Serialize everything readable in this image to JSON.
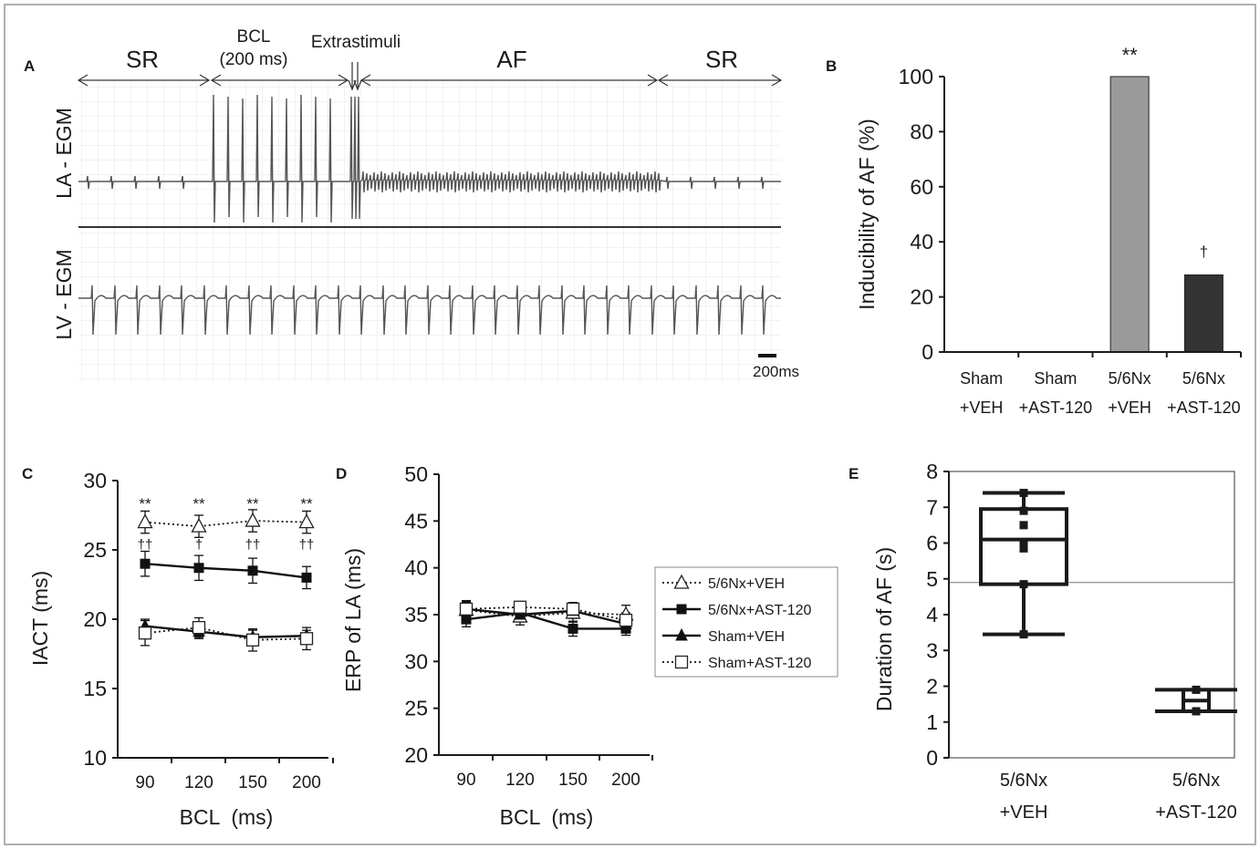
{
  "chart_data": [
    {
      "panel": "A",
      "type": "line",
      "traces": [
        "LA - EGM",
        "LV - EGM"
      ],
      "phases": [
        {
          "label": "SR"
        },
        {
          "label": "BCL (200 ms)",
          "label_lines": [
            "BCL",
            "(200 ms)"
          ]
        },
        {
          "label": "Extrastimuli"
        },
        {
          "label": "AF"
        },
        {
          "label": "SR"
        }
      ],
      "scale_bar": "200ms"
    },
    {
      "panel": "B",
      "type": "bar",
      "categories": [
        "Sham +VEH",
        "Sham +AST-120",
        "5/6Nx +VEH",
        "5/6Nx +AST-120"
      ],
      "category_lines": [
        [
          "Sham",
          "+VEH"
        ],
        [
          "Sham",
          "+AST-120"
        ],
        [
          "5/6Nx",
          "+VEH"
        ],
        [
          "5/6Nx",
          "+AST-120"
        ]
      ],
      "values": [
        0,
        0,
        100,
        28
      ],
      "annotations": [
        "",
        "",
        "**",
        "†"
      ],
      "colors": [
        "#9a9a9a",
        "#9a9a9a",
        "#9a9a9a",
        "#333333"
      ],
      "ylabel": "Inducibility of AF (%)",
      "ylim": [
        0,
        100
      ],
      "yticks": [
        0,
        20,
        40,
        60,
        80,
        100
      ]
    },
    {
      "panel": "C",
      "type": "line",
      "x": [
        90,
        120,
        150,
        200
      ],
      "xlabel": "BCL  (ms)",
      "ylabel": "IACT (ms)",
      "ylim": [
        10,
        30
      ],
      "yticks": [
        10,
        15,
        20,
        25,
        30
      ],
      "series": [
        {
          "name": "5/6Nx+VEH",
          "values": [
            27.0,
            26.7,
            27.1,
            27.0
          ],
          "err": [
            0.8,
            0.8,
            0.8,
            0.8
          ],
          "marker": "open-triangle",
          "style": "dotted"
        },
        {
          "name": "5/6Nx+AST-120",
          "values": [
            24.0,
            23.7,
            23.5,
            23.0
          ],
          "err": [
            0.9,
            0.9,
            0.9,
            0.8
          ],
          "marker": "filled-square",
          "style": "solid"
        },
        {
          "name": "Sham+VEH",
          "values": [
            19.5,
            19.1,
            18.7,
            18.8
          ],
          "err": [
            0.5,
            0.5,
            0.5,
            0.4
          ],
          "marker": "filled-triangle",
          "style": "solid"
        },
        {
          "name": "Sham+AST-120",
          "values": [
            19.0,
            19.4,
            18.5,
            18.6
          ],
          "err": [
            0.9,
            0.7,
            0.8,
            0.8
          ],
          "marker": "open-square",
          "style": "dotted"
        }
      ],
      "annotations": [
        {
          "x": 90,
          "row1": "**",
          "row2": "††"
        },
        {
          "x": 120,
          "row1": "**",
          "row2": "†"
        },
        {
          "x": 150,
          "row1": "**",
          "row2": "††"
        },
        {
          "x": 200,
          "row1": "**",
          "row2": "††"
        }
      ],
      "annotation_levels": [
        28.5,
        25.6
      ]
    },
    {
      "panel": "D",
      "type": "line",
      "x": [
        90,
        120,
        150,
        200
      ],
      "xlabel": "BCL  (ms)",
      "ylabel": "ERP of LA (ms)",
      "ylim": [
        20,
        50
      ],
      "yticks": [
        20,
        25,
        30,
        35,
        40,
        45,
        50
      ],
      "series": [
        {
          "name": "5/6Nx+VEH",
          "values": [
            35.5,
            34.8,
            35.2,
            35.0
          ],
          "err": [
            1.0,
            0.9,
            1.0,
            1.0
          ],
          "marker": "open-triangle",
          "style": "dotted"
        },
        {
          "name": "5/6Nx+AST-120",
          "values": [
            34.5,
            35.2,
            33.5,
            33.5
          ],
          "err": [
            0.8,
            0.8,
            0.8,
            0.7
          ],
          "marker": "filled-square",
          "style": "solid"
        },
        {
          "name": "Sham+VEH",
          "values": [
            35.6,
            35.0,
            35.4,
            34.0
          ],
          "err": [
            0.8,
            0.7,
            0.8,
            0.8
          ],
          "marker": "filled-triangle",
          "style": "solid"
        },
        {
          "name": "Sham+AST-120",
          "values": [
            35.6,
            35.8,
            35.6,
            34.4
          ],
          "err": [
            0.7,
            0.6,
            0.7,
            0.8
          ],
          "marker": "open-square",
          "style": "dotted"
        }
      ],
      "legend": [
        "5/6Nx+VEH",
        "5/6Nx+AST-120",
        "Sham+VEH",
        "Sham+AST-120"
      ],
      "legend_position": "right"
    },
    {
      "panel": "E",
      "type": "box",
      "categories": [
        "5/6Nx +VEH",
        "5/6Nx +AST-120"
      ],
      "category_lines": [
        [
          "5/6Nx",
          "+VEH"
        ],
        [
          "5/6Nx",
          "+AST-120"
        ]
      ],
      "ylabel": "Duration of AF (s)",
      "ylim": [
        0,
        8
      ],
      "yticks": [
        0,
        1,
        2,
        3,
        4,
        5,
        6,
        7,
        8
      ],
      "reference_line": 4.9,
      "boxes": [
        {
          "whisker_low": 3.45,
          "q1": 4.85,
          "median": 6.1,
          "q3": 6.95,
          "whisker_high": 7.4,
          "points": [
            3.45,
            4.85,
            5.85,
            6.0,
            6.5,
            6.9,
            7.4
          ]
        },
        {
          "whisker_low": 1.3,
          "q1": 1.3,
          "median": 1.6,
          "q3": 1.9,
          "whisker_high": 1.9,
          "points": [
            1.3,
            1.9
          ]
        }
      ]
    }
  ]
}
